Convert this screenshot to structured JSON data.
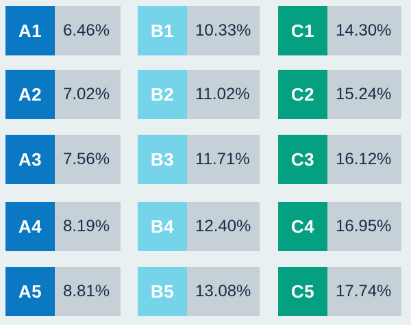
{
  "colors": {
    "background": "#e9f0f1",
    "value_bg": "#c5d0d7",
    "value_text": "#1c2b45",
    "col_a": "#0a78c2",
    "col_b": "#76d4ea",
    "col_c": "#05a081"
  },
  "columns": [
    {
      "rows": [
        {
          "code": "A1",
          "value": "6.46%"
        },
        {
          "code": "A2",
          "value": "7.02%"
        },
        {
          "code": "A3",
          "value": "7.56%"
        },
        {
          "code": "A4",
          "value": "8.19%"
        },
        {
          "code": "A5",
          "value": "8.81%"
        }
      ]
    },
    {
      "rows": [
        {
          "code": "B1",
          "value": "10.33%"
        },
        {
          "code": "B2",
          "value": "11.02%"
        },
        {
          "code": "B3",
          "value": "11.71%"
        },
        {
          "code": "B4",
          "value": "12.40%"
        },
        {
          "code": "B5",
          "value": "13.08%"
        }
      ]
    },
    {
      "rows": [
        {
          "code": "C1",
          "value": "14.30%"
        },
        {
          "code": "C2",
          "value": "15.24%"
        },
        {
          "code": "C3",
          "value": "16.12%"
        },
        {
          "code": "C4",
          "value": "16.95%"
        },
        {
          "code": "C5",
          "value": "17.74%"
        }
      ]
    }
  ]
}
